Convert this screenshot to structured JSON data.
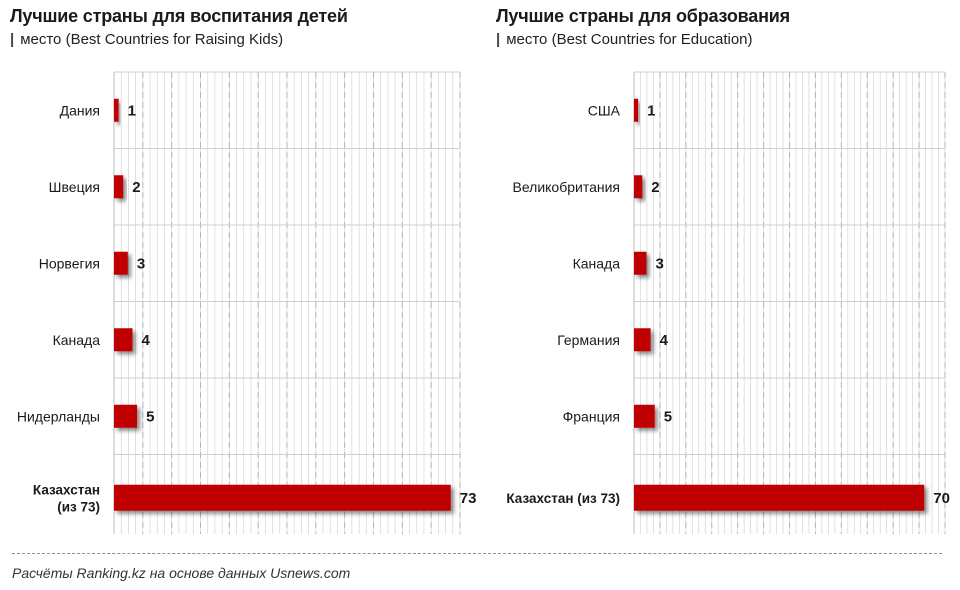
{
  "charts": [
    {
      "title": "Лучшие страны для воспитания детей",
      "subtitle": "место (Best Countries for Raising Kids)",
      "subtitle_marker": "|"
    },
    {
      "title": "Лучшие страны для образования",
      "subtitle": "место (Best Countries for Education)",
      "subtitle_marker": "|"
    }
  ],
  "source": "Расчёты Ranking.kz на основе данных Usnews.com",
  "colors": {
    "bar": "#c00000",
    "grid_major": "#cfcfcf",
    "grid_minor": "#d4d4d4"
  },
  "chart_data": [
    {
      "type": "bar",
      "orientation": "horizontal",
      "title": "Лучшие страны для воспитания детей",
      "subtitle": "место (Best Countries for Raising Kids)",
      "categories": [
        "Дания",
        "Швеция",
        "Норвегия",
        "Канада",
        "Нидерланды",
        "Казахстан (из 73)"
      ],
      "category_lines": [
        [
          "Дания"
        ],
        [
          "Швеция"
        ],
        [
          "Норвегия"
        ],
        [
          "Канада"
        ],
        [
          "Нидерланды"
        ],
        [
          "Казахстан",
          "(из 73)"
        ]
      ],
      "bold_categories": [
        false,
        false,
        false,
        false,
        false,
        true
      ],
      "values": [
        1,
        2,
        3,
        4,
        5,
        73
      ],
      "xlim": [
        0,
        75
      ],
      "grid": true
    },
    {
      "type": "bar",
      "orientation": "horizontal",
      "title": "Лучшие страны для образования",
      "subtitle": "место (Best Countries for Education)",
      "categories": [
        "США",
        "Великобритания",
        "Канада",
        "Германия",
        "Франция",
        "Казахстан (из 73)"
      ],
      "category_lines": [
        [
          "США"
        ],
        [
          "Великобритания"
        ],
        [
          "Канада"
        ],
        [
          "Германия"
        ],
        [
          "Франция"
        ],
        [
          "Казахстан (из 73)"
        ]
      ],
      "bold_categories": [
        false,
        false,
        false,
        false,
        false,
        true
      ],
      "values": [
        1,
        2,
        3,
        4,
        5,
        70
      ],
      "xlim": [
        0,
        75
      ],
      "grid": true
    }
  ]
}
